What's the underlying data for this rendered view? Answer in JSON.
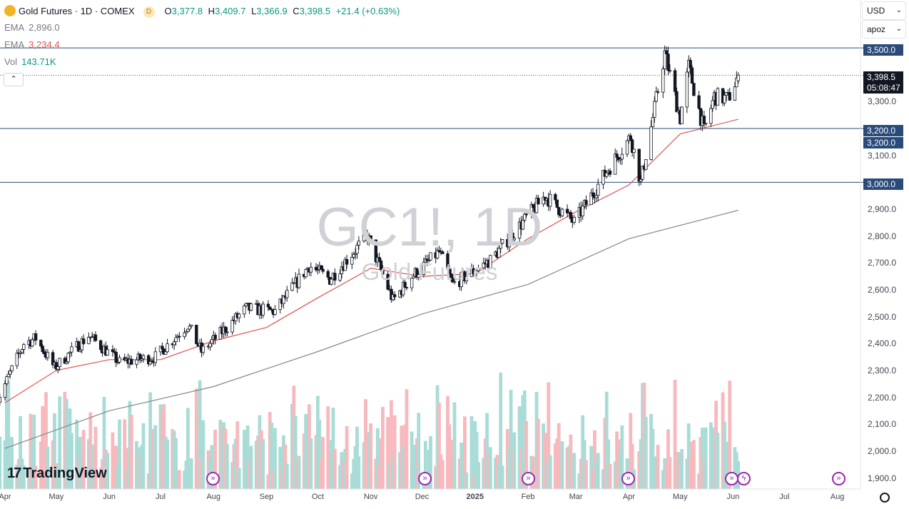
{
  "legend": {
    "symbol_title": "Gold Futures · 1D · COMEX",
    "badge": "D",
    "ohlc": {
      "o_label": "O",
      "o": "3,377.8",
      "h_label": "H",
      "h": "3,409.7",
      "l_label": "L",
      "l": "3,366.9",
      "c_label": "C",
      "c": "3,398.5",
      "change": "+21.4 (+0.63%)"
    },
    "ema1_label": "EMA",
    "ema1_value": "2,896.0",
    "ema2_label": "EMA",
    "ema2_value": "3,234.4",
    "vol_label": "Vol",
    "vol_value": "143.71K",
    "collapse_glyph": "⌃"
  },
  "toolbar": {
    "currency": "USD",
    "unit": "apoz",
    "chevron": "⌄"
  },
  "price_badges": {
    "line_3500": "3,500.0",
    "last_price": "3,398.5",
    "countdown": "05:08:47",
    "line_3200a": "3,200.0",
    "line_3200b": "3,200.0",
    "line_3000": "3,000.0"
  },
  "watermark": {
    "symbol": "GC1!, 1D",
    "name": "Gold Futures"
  },
  "brand": {
    "logo_mark": "17",
    "logo_text": "TradingView"
  },
  "colors": {
    "up": "#089981",
    "down": "#f23645",
    "ema_fast": "#e05252",
    "ema_slow": "#878787",
    "hline": "#2a4a7a",
    "vol_up": "#a9dcd6",
    "vol_down": "#f7b9bd"
  },
  "chart_data": {
    "type": "candlestick",
    "title": "Gold Futures · 1D · COMEX",
    "y_axis": {
      "ticks": [
        1900,
        2000,
        2100,
        2200,
        2300,
        2400,
        2500,
        2600,
        2700,
        2800,
        2900,
        3000,
        3100,
        3200,
        3300,
        3400,
        3500
      ],
      "tick_labels": [
        "1,900.0",
        "2,000.0",
        "2,100.0",
        "2,200.0",
        "2,300.0",
        "2,400.0",
        "2,500.0",
        "2,600.0",
        "2,700.0",
        "2,800.0",
        "2,900.0",
        "3,000.0",
        "3,100.0",
        "3,200.0",
        "3,300.0",
        "3,400.0",
        "3,500.0"
      ],
      "range": [
        1880,
        3560
      ]
    },
    "x_axis": {
      "labels": [
        "Apr",
        "May",
        "Jun",
        "Jul",
        "Aug",
        "Sep",
        "Oct",
        "Nov",
        "Dec",
        "2025",
        "Feb",
        "Mar",
        "Apr",
        "May",
        "Jun",
        "Jul",
        "Aug"
      ],
      "dates": [
        "2024-04-01",
        "2024-05-01",
        "2024-06-01",
        "2024-07-01",
        "2024-08-01",
        "2024-09-01",
        "2024-10-01",
        "2024-11-01",
        "2024-12-01",
        "2025-01-01",
        "2025-02-01",
        "2025-03-01",
        "2025-04-01",
        "2025-05-01",
        "2025-06-01",
        "2025-07-01",
        "2025-08-01"
      ],
      "range": [
        "2024-04-01",
        "2025-08-12"
      ]
    },
    "horizontal_lines": [
      3500,
      3200,
      3000
    ],
    "last_price": 3398.5,
    "price_path": [
      [
        "2024-03-27",
        2180
      ],
      [
        "2024-04-12",
        2400
      ],
      [
        "2024-04-19",
        2420
      ],
      [
        "2024-04-30",
        2310
      ],
      [
        "2024-05-20",
        2430
      ],
      [
        "2024-06-07",
        2330
      ],
      [
        "2024-06-28",
        2350
      ],
      [
        "2024-07-17",
        2470
      ],
      [
        "2024-07-25",
        2370
      ],
      [
        "2024-08-20",
        2530
      ],
      [
        "2024-09-06",
        2520
      ],
      [
        "2024-09-26",
        2690
      ],
      [
        "2024-10-08",
        2640
      ],
      [
        "2024-10-30",
        2800
      ],
      [
        "2024-11-14",
        2560
      ],
      [
        "2024-11-25",
        2650
      ],
      [
        "2024-12-11",
        2740
      ],
      [
        "2024-12-19",
        2620
      ],
      [
        "2025-01-10",
        2710
      ],
      [
        "2025-02-11",
        2950
      ],
      [
        "2025-02-28",
        2850
      ],
      [
        "2025-03-20",
        3050
      ],
      [
        "2025-04-02",
        3170
      ],
      [
        "2025-04-08",
        3000
      ],
      [
        "2025-04-22",
        3480
      ],
      [
        "2025-05-01",
        3240
      ],
      [
        "2025-05-06",
        3430
      ],
      [
        "2025-05-15",
        3190
      ],
      [
        "2025-05-21",
        3320
      ],
      [
        "2025-05-29",
        3310
      ],
      [
        "2025-06-04",
        3398.5
      ]
    ],
    "series": [
      {
        "name": "EMA",
        "value_shown": 2896.0,
        "path": [
          [
            "2024-04-01",
            2010
          ],
          [
            "2024-06-01",
            2150
          ],
          [
            "2024-08-01",
            2240
          ],
          [
            "2024-10-01",
            2370
          ],
          [
            "2024-12-01",
            2510
          ],
          [
            "2025-02-01",
            2620
          ],
          [
            "2025-04-01",
            2790
          ],
          [
            "2025-06-04",
            2896.0
          ]
        ]
      },
      {
        "name": "EMA",
        "value_shown": 3234.4,
        "path": [
          [
            "2024-04-01",
            2180
          ],
          [
            "2024-05-01",
            2300
          ],
          [
            "2024-06-01",
            2340
          ],
          [
            "2024-07-01",
            2340
          ],
          [
            "2024-08-01",
            2410
          ],
          [
            "2024-09-01",
            2460
          ],
          [
            "2024-10-01",
            2570
          ],
          [
            "2024-11-01",
            2680
          ],
          [
            "2024-12-01",
            2650
          ],
          [
            "2025-01-01",
            2660
          ],
          [
            "2025-02-01",
            2790
          ],
          [
            "2025-03-01",
            2890
          ],
          [
            "2025-04-01",
            2990
          ],
          [
            "2025-05-01",
            3180
          ],
          [
            "2025-06-04",
            3234.4
          ]
        ]
      }
    ],
    "volume": {
      "name": "Vol",
      "last_value": "143.71K"
    },
    "watermark": "GC1!, 1D"
  }
}
